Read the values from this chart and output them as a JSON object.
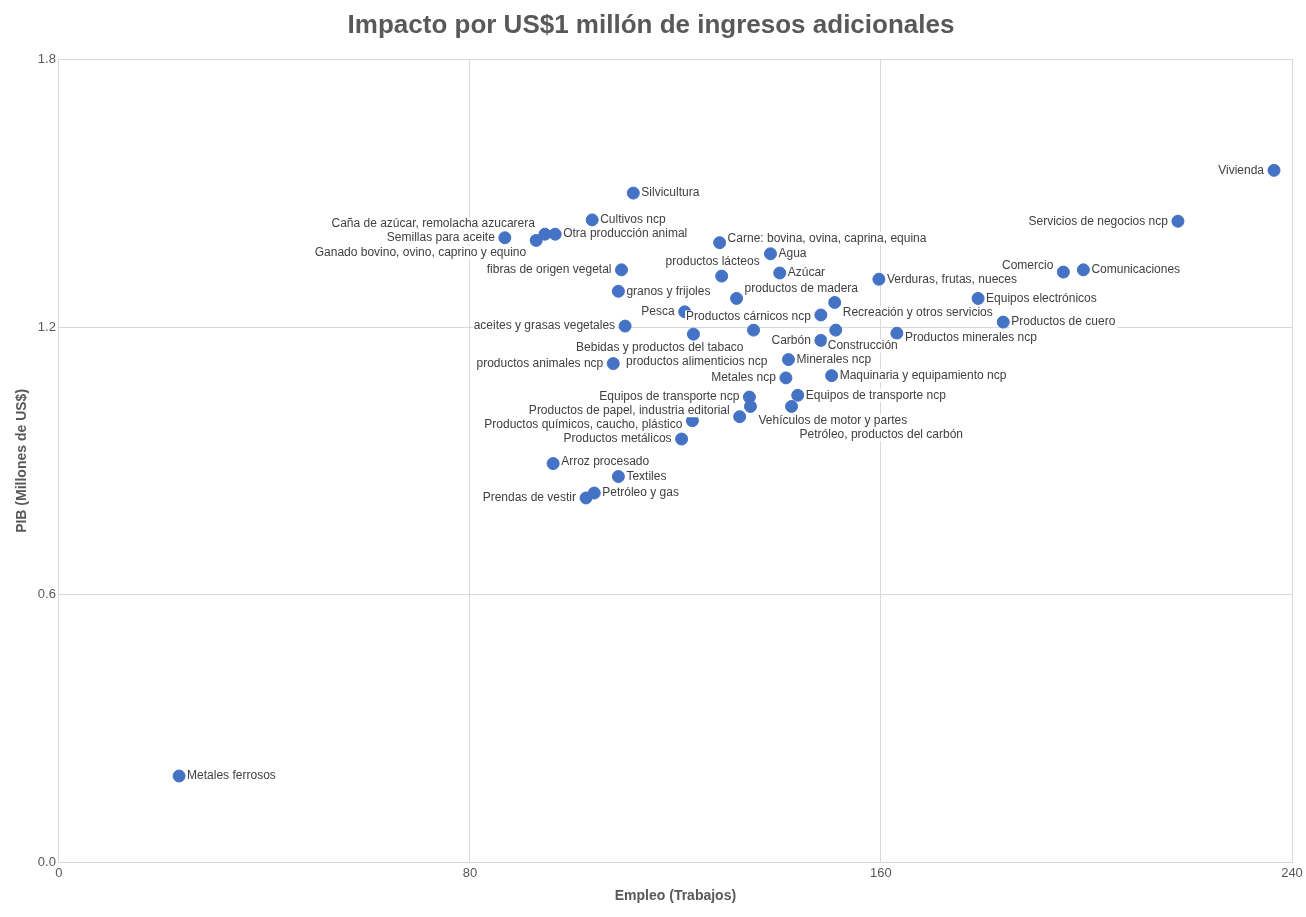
{
  "chart_data": {
    "type": "scatter",
    "title": "Impacto por US$1 millón de ingresos adicionales",
    "xlabel": "Empleo (Trabajos)",
    "ylabel": "PIB (Millones de US$)",
    "xlim": [
      0,
      240
    ],
    "xticks": [
      0,
      80,
      160,
      240
    ],
    "ylim": [
      0,
      1.8
    ],
    "yticks": [
      {
        "value": 0,
        "label": "0.0"
      },
      0.6,
      1.2,
      1.8
    ],
    "grid": true,
    "marker": "circle",
    "series": [
      {
        "color": "#4472c4",
        "x": [
          236.5,
          217.8,
          195.5,
          199.4,
          178.9,
          183.8,
          159.6,
          163.1,
          151,
          148.3,
          151.2,
          148.3,
          135.2,
          142,
          141.5,
          150.4,
          143.8,
          134.4,
          134.6,
          142.6,
          132.5,
          123.3,
          121.2,
          96.2,
          108.9,
          104.2,
          102.6,
          23.4,
          111.8,
          103.8,
          86.8,
          92.9,
          94.6,
          96.6,
          109.5,
          108.9,
          128.6,
          121.8,
          110.2,
          123.5,
          107.9,
          131.9,
          138.5,
          129,
          140.3
        ],
        "values": [
          1.551,
          1.437,
          1.323,
          1.328,
          1.264,
          1.211,
          1.307,
          1.186,
          1.255,
          1.227,
          1.193,
          1.17,
          1.193,
          1.127,
          1.086,
          1.091,
          1.047,
          1.043,
          1.022,
          1.022,
          0.999,
          0.99,
          0.949,
          0.894,
          0.865,
          0.828,
          0.817,
          0.194,
          1.5,
          1.44,
          1.4,
          1.394,
          1.408,
          1.408,
          1.328,
          1.28,
          1.389,
          1.234,
          1.202,
          1.184,
          1.118,
          1.264,
          1.364,
          1.314,
          1.321
        ]
      }
    ],
    "annotations": [
      {
        "text": "Vivienda",
        "x": 236.5,
        "y": 1.551
      },
      {
        "text": "Servicios de negocios ncp",
        "x": 217.8,
        "y": 1.437
      },
      {
        "text": "Comercio",
        "x": 195.5,
        "y": 1.323
      },
      {
        "text": "Comunicaciones",
        "x": 199.4,
        "y": 1.328
      },
      {
        "text": "Equipos electrónicos",
        "x": 178.9,
        "y": 1.264
      },
      {
        "text": "Productos de cuero",
        "x": 183.8,
        "y": 1.211
      },
      {
        "text": "Verduras, frutas, nueces",
        "x": 159.6,
        "y": 1.307
      },
      {
        "text": "Productos minerales ncp",
        "x": 163.1,
        "y": 1.186
      },
      {
        "text": "Recreación y otros servicios",
        "x": 151,
        "y": 1.255
      },
      {
        "text": "Productos cárnicos ncp",
        "x": 148.3,
        "y": 1.227
      },
      {
        "text": "Construcción",
        "x": 151.2,
        "y": 1.193
      },
      {
        "text": "Carbón",
        "x": 148.3,
        "y": 1.17
      },
      {
        "text": "Bebidas y productos del tabaco",
        "x": 135.2,
        "y": 1.193
      },
      {
        "text": "Minerales ncp",
        "x": 142,
        "y": 1.127
      },
      {
        "text": "Metales ncp",
        "x": 141.5,
        "y": 1.086
      },
      {
        "text": "Maquinaria y equipamiento ncp",
        "x": 150.4,
        "y": 1.091
      },
      {
        "text": "Equipos de transporte ncp",
        "x": 143.8,
        "y": 1.047
      },
      {
        "text": "Equipos de transporte ncp",
        "x": 134.4,
        "y": 1.043
      },
      {
        "text": "Vehículos de motor y partes",
        "x": 134.6,
        "y": 1.022
      },
      {
        "text": "Petróleo, productos del carbón",
        "x": 142.6,
        "y": 1.022
      },
      {
        "text": "Productos de papel, industria editorial",
        "x": 132.5,
        "y": 0.999
      },
      {
        "text": "Productos químicos, caucho, plástico",
        "x": 123.3,
        "y": 0.99
      },
      {
        "text": "Productos metálicos",
        "x": 121.2,
        "y": 0.949
      },
      {
        "text": "Arroz procesado",
        "x": 96.2,
        "y": 0.894
      },
      {
        "text": "Textiles",
        "x": 108.9,
        "y": 0.865
      },
      {
        "text": "Petróleo y gas",
        "x": 104.2,
        "y": 0.828
      },
      {
        "text": "Prendas de vestir",
        "x": 102.6,
        "y": 0.817
      },
      {
        "text": "Metales ferrosos",
        "x": 23.4,
        "y": 0.194
      },
      {
        "text": "Silvicultura",
        "x": 111.8,
        "y": 1.5
      },
      {
        "text": "Cultivos ncp",
        "x": 103.8,
        "y": 1.44
      },
      {
        "text": "Semillas para aceite",
        "x": 86.8,
        "y": 1.4
      },
      {
        "text": "Ganado bovino, ovino, caprino y equino",
        "x": 92.9,
        "y": 1.394
      },
      {
        "text": "Caña de azúcar, remolacha azucarera",
        "x": 94.6,
        "y": 1.408
      },
      {
        "text": "Otra producción animal",
        "x": 96.6,
        "y": 1.408
      },
      {
        "text": "fibras de origen vegetal",
        "x": 109.5,
        "y": 1.328
      },
      {
        "text": "granos y frijoles",
        "x": 108.9,
        "y": 1.28
      },
      {
        "text": "Carne: bovina, ovina, caprina, equina",
        "x": 128.6,
        "y": 1.389
      },
      {
        "text": "Pesca",
        "x": 121.8,
        "y": 1.234
      },
      {
        "text": "aceites y grasas vegetales",
        "x": 110.2,
        "y": 1.202
      },
      {
        "text": "productos alimenticios ncp",
        "x": 123.5,
        "y": 1.184
      },
      {
        "text": "productos animales ncp",
        "x": 107.9,
        "y": 1.118
      },
      {
        "text": "productos de madera",
        "x": 131.9,
        "y": 1.264
      },
      {
        "text": "Agua",
        "x": 138.5,
        "y": 1.364
      },
      {
        "text": "productos lácteos",
        "x": 129,
        "y": 1.314
      },
      {
        "text": "Azúcar",
        "x": 140.3,
        "y": 1.321
      }
    ]
  }
}
